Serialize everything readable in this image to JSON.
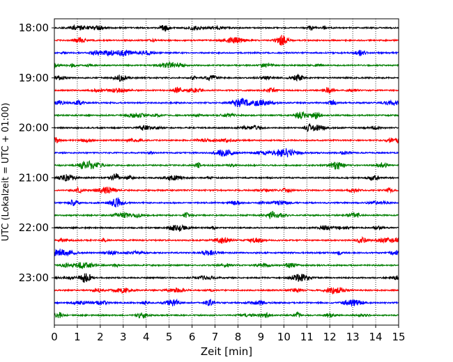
{
  "chart_data": {
    "type": "line",
    "title": "",
    "xlabel": "Zeit  [min]",
    "ylabel": "UTC (Lokalzeit = UTC + 01:00)",
    "xlim": [
      0,
      15
    ],
    "x_ticks": [
      "0",
      "1",
      "2",
      "3",
      "4",
      "5",
      "6",
      "7",
      "8",
      "9",
      "10",
      "11",
      "12",
      "13",
      "14",
      "15"
    ],
    "y_ticks": [
      "18:00",
      "19:00",
      "20:00",
      "21:00",
      "22:00",
      "23:00"
    ],
    "trace_interval_min": 15,
    "trace_start": "18:00",
    "trace_count": 24,
    "color_cycle": [
      "#000000",
      "#ff0000",
      "#0000ff",
      "#007f00"
    ],
    "grid": "vertical-dotted",
    "legend": "none"
  }
}
